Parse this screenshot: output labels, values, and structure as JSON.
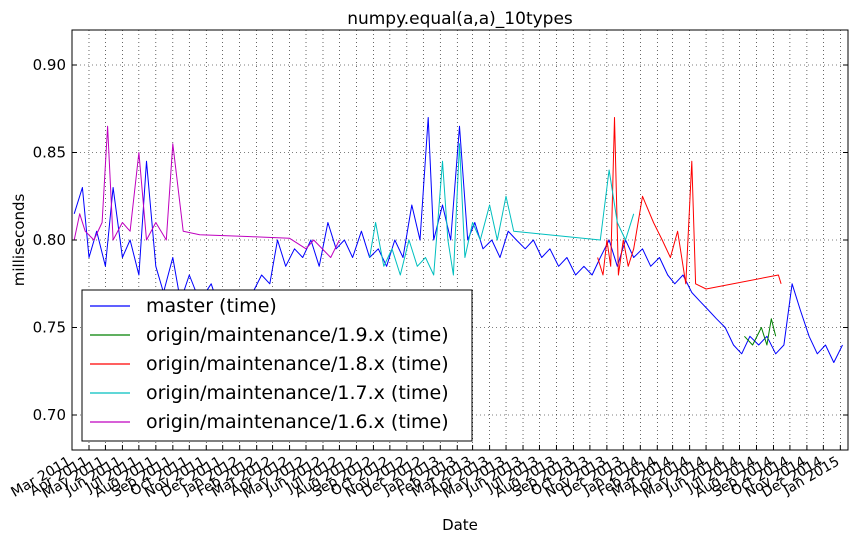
{
  "chart_data": {
    "type": "line",
    "title": "numpy.equal(a,a)_10types",
    "xlabel": "Date",
    "ylabel": "milliseconds",
    "ylim": [
      0.68,
      0.92
    ],
    "xlim": [
      "2011-03-01",
      "2015-01-15"
    ],
    "grid": true,
    "legend_position": "bottom-left",
    "y_ticks": [
      "0.70",
      "0.75",
      "0.80",
      "0.85",
      "0.90"
    ],
    "x_tick_labels": [
      "Mar 2011",
      "Apr 2011",
      "May 2011",
      "Jun 2011",
      "Jul 2011",
      "Aug 2011",
      "Sep 2011",
      "Oct 2011",
      "Nov 2011",
      "Dec 2011",
      "Jan 2012",
      "Feb 2012",
      "Mar 2012",
      "Apr 2012",
      "May 2012",
      "Jun 2012",
      "Jul 2012",
      "Aug 2012",
      "Sep 2012",
      "Oct 2012",
      "Nov 2012",
      "Dec 2012",
      "Jan 2013",
      "Feb 2013",
      "Mar 2013",
      "Apr 2013",
      "May 2013",
      "Jun 2013",
      "Jul 2013",
      "Aug 2013",
      "Sep 2013",
      "Oct 2013",
      "Nov 2013",
      "Dec 2013",
      "Jan 2014",
      "Feb 2014",
      "Mar 2014",
      "Apr 2014",
      "May 2014",
      "Jun 2014",
      "Jul 2014",
      "Aug 2014",
      "Sep 2014",
      "Oct 2014",
      "Nov 2014",
      "Dec 2014",
      "Jan 2015"
    ],
    "series": [
      {
        "name": "master (time)",
        "color": "#0000ff",
        "points": [
          [
            "2011-03-05",
            0.815
          ],
          [
            "2011-03-20",
            0.83
          ],
          [
            "2011-04-01",
            0.79
          ],
          [
            "2011-04-15",
            0.805
          ],
          [
            "2011-05-01",
            0.785
          ],
          [
            "2011-05-15",
            0.83
          ],
          [
            "2011-06-01",
            0.79
          ],
          [
            "2011-06-15",
            0.8
          ],
          [
            "2011-07-01",
            0.78
          ],
          [
            "2011-07-15",
            0.845
          ],
          [
            "2011-08-01",
            0.785
          ],
          [
            "2011-08-15",
            0.77
          ],
          [
            "2011-09-01",
            0.79
          ],
          [
            "2011-09-15",
            0.765
          ],
          [
            "2011-10-01",
            0.78
          ],
          [
            "2011-10-20",
            0.765
          ],
          [
            "2011-11-10",
            0.775
          ],
          [
            "2011-12-01",
            0.755
          ],
          [
            "2011-12-20",
            0.765
          ],
          [
            "2012-01-10",
            0.76
          ],
          [
            "2012-01-25",
            0.77
          ],
          [
            "2012-02-10",
            0.78
          ],
          [
            "2012-02-25",
            0.775
          ],
          [
            "2012-03-10",
            0.8
          ],
          [
            "2012-03-25",
            0.785
          ],
          [
            "2012-04-10",
            0.795
          ],
          [
            "2012-04-25",
            0.79
          ],
          [
            "2012-05-10",
            0.8
          ],
          [
            "2012-05-25",
            0.785
          ],
          [
            "2012-06-10",
            0.81
          ],
          [
            "2012-06-25",
            0.795
          ],
          [
            "2012-07-10",
            0.8
          ],
          [
            "2012-07-25",
            0.79
          ],
          [
            "2012-08-10",
            0.805
          ],
          [
            "2012-08-25",
            0.79
          ],
          [
            "2012-09-10",
            0.795
          ],
          [
            "2012-09-25",
            0.785
          ],
          [
            "2012-10-10",
            0.8
          ],
          [
            "2012-10-25",
            0.79
          ],
          [
            "2012-11-10",
            0.82
          ],
          [
            "2012-11-25",
            0.8
          ],
          [
            "2012-12-10",
            0.87
          ],
          [
            "2012-12-20",
            0.8
          ],
          [
            "2013-01-05",
            0.82
          ],
          [
            "2013-01-20",
            0.8
          ],
          [
            "2013-02-05",
            0.865
          ],
          [
            "2013-02-20",
            0.8
          ],
          [
            "2013-03-05",
            0.81
          ],
          [
            "2013-03-20",
            0.795
          ],
          [
            "2013-04-05",
            0.8
          ],
          [
            "2013-04-20",
            0.79
          ],
          [
            "2013-05-05",
            0.805
          ],
          [
            "2013-05-20",
            0.8
          ],
          [
            "2013-06-05",
            0.795
          ],
          [
            "2013-06-20",
            0.8
          ],
          [
            "2013-07-05",
            0.79
          ],
          [
            "2013-07-20",
            0.795
          ],
          [
            "2013-08-05",
            0.785
          ],
          [
            "2013-08-20",
            0.79
          ],
          [
            "2013-09-05",
            0.78
          ],
          [
            "2013-09-20",
            0.785
          ],
          [
            "2013-10-05",
            0.78
          ],
          [
            "2013-10-20",
            0.79
          ],
          [
            "2013-11-05",
            0.8
          ],
          [
            "2013-11-20",
            0.785
          ],
          [
            "2013-12-05",
            0.8
          ],
          [
            "2013-12-20",
            0.79
          ],
          [
            "2014-01-05",
            0.795
          ],
          [
            "2014-01-20",
            0.785
          ],
          [
            "2014-02-05",
            0.79
          ],
          [
            "2014-02-20",
            0.78
          ],
          [
            "2014-03-05",
            0.775
          ],
          [
            "2014-03-20",
            0.78
          ],
          [
            "2014-04-05",
            0.77
          ],
          [
            "2014-04-20",
            0.765
          ],
          [
            "2014-05-05",
            0.76
          ],
          [
            "2014-05-20",
            0.755
          ],
          [
            "2014-06-05",
            0.75
          ],
          [
            "2014-06-20",
            0.74
          ],
          [
            "2014-07-05",
            0.735
          ],
          [
            "2014-07-20",
            0.745
          ],
          [
            "2014-08-05",
            0.74
          ],
          [
            "2014-08-20",
            0.745
          ],
          [
            "2014-09-05",
            0.735
          ],
          [
            "2014-09-20",
            0.74
          ],
          [
            "2014-10-05",
            0.775
          ],
          [
            "2014-10-20",
            0.76
          ],
          [
            "2014-11-05",
            0.745
          ],
          [
            "2014-11-20",
            0.735
          ],
          [
            "2014-12-05",
            0.74
          ],
          [
            "2014-12-20",
            0.73
          ],
          [
            "2015-01-05",
            0.74
          ]
        ]
      },
      {
        "name": "origin/maintenance/1.9.x (time)",
        "color": "#008000",
        "points": [
          [
            "2014-07-10",
            0.745
          ],
          [
            "2014-07-25",
            0.74
          ],
          [
            "2014-08-10",
            0.75
          ],
          [
            "2014-08-20",
            0.74
          ],
          [
            "2014-08-28",
            0.755
          ],
          [
            "2014-09-05",
            0.745
          ]
        ]
      },
      {
        "name": "origin/maintenance/1.8.x (time)",
        "color": "#ff0000",
        "points": [
          [
            "2013-10-15",
            0.79
          ],
          [
            "2013-10-25",
            0.78
          ],
          [
            "2013-11-01",
            0.8
          ],
          [
            "2013-11-08",
            0.785
          ],
          [
            "2013-11-15",
            0.87
          ],
          [
            "2013-11-22",
            0.78
          ],
          [
            "2013-12-01",
            0.8
          ],
          [
            "2013-12-10",
            0.785
          ],
          [
            "2013-12-20",
            0.795
          ],
          [
            "2014-01-05",
            0.825
          ],
          [
            "2014-01-25",
            0.81
          ],
          [
            "2014-02-10",
            0.8
          ],
          [
            "2014-02-25",
            0.79
          ],
          [
            "2014-03-10",
            0.805
          ],
          [
            "2014-03-25",
            0.775
          ],
          [
            "2014-04-05",
            0.845
          ],
          [
            "2014-04-12",
            0.775
          ],
          [
            "2014-05-01",
            0.772
          ],
          [
            "2014-09-10",
            0.78
          ],
          [
            "2014-09-15",
            0.775
          ]
        ]
      },
      {
        "name": "origin/maintenance/1.7.x (time)",
        "color": "#00bfbf",
        "points": [
          [
            "2012-08-25",
            0.79
          ],
          [
            "2012-09-05",
            0.81
          ],
          [
            "2012-09-20",
            0.785
          ],
          [
            "2012-10-05",
            0.795
          ],
          [
            "2012-10-20",
            0.78
          ],
          [
            "2012-11-05",
            0.8
          ],
          [
            "2012-11-20",
            0.785
          ],
          [
            "2012-12-05",
            0.79
          ],
          [
            "2012-12-20",
            0.78
          ],
          [
            "2013-01-05",
            0.845
          ],
          [
            "2013-01-15",
            0.8
          ],
          [
            "2013-01-25",
            0.78
          ],
          [
            "2013-02-05",
            0.855
          ],
          [
            "2013-02-15",
            0.79
          ],
          [
            "2013-03-01",
            0.81
          ],
          [
            "2013-03-15",
            0.8
          ],
          [
            "2013-04-01",
            0.82
          ],
          [
            "2013-04-15",
            0.8
          ],
          [
            "2013-05-01",
            0.825
          ],
          [
            "2013-05-15",
            0.805
          ],
          [
            "2013-10-20",
            0.8
          ],
          [
            "2013-11-05",
            0.84
          ],
          [
            "2013-11-20",
            0.81
          ],
          [
            "2013-12-05",
            0.8
          ],
          [
            "2013-12-20",
            0.815
          ]
        ]
      },
      {
        "name": "origin/maintenance/1.6.x (time)",
        "color": "#bf00bf",
        "points": [
          [
            "2011-03-05",
            0.8
          ],
          [
            "2011-03-15",
            0.815
          ],
          [
            "2011-03-25",
            0.805
          ],
          [
            "2011-04-10",
            0.8
          ],
          [
            "2011-04-25",
            0.81
          ],
          [
            "2011-05-05",
            0.865
          ],
          [
            "2011-05-15",
            0.8
          ],
          [
            "2011-06-01",
            0.81
          ],
          [
            "2011-06-15",
            0.805
          ],
          [
            "2011-07-01",
            0.85
          ],
          [
            "2011-07-15",
            0.8
          ],
          [
            "2011-08-01",
            0.81
          ],
          [
            "2011-08-20",
            0.8
          ],
          [
            "2011-09-01",
            0.855
          ],
          [
            "2011-09-20",
            0.805
          ],
          [
            "2011-10-20",
            0.803
          ],
          [
            "2012-01-15",
            0.802
          ],
          [
            "2012-04-01",
            0.801
          ],
          [
            "2012-05-01",
            0.795
          ],
          [
            "2012-05-15",
            0.8
          ],
          [
            "2012-06-15",
            0.79
          ],
          [
            "2012-07-01",
            0.8
          ]
        ]
      }
    ]
  }
}
